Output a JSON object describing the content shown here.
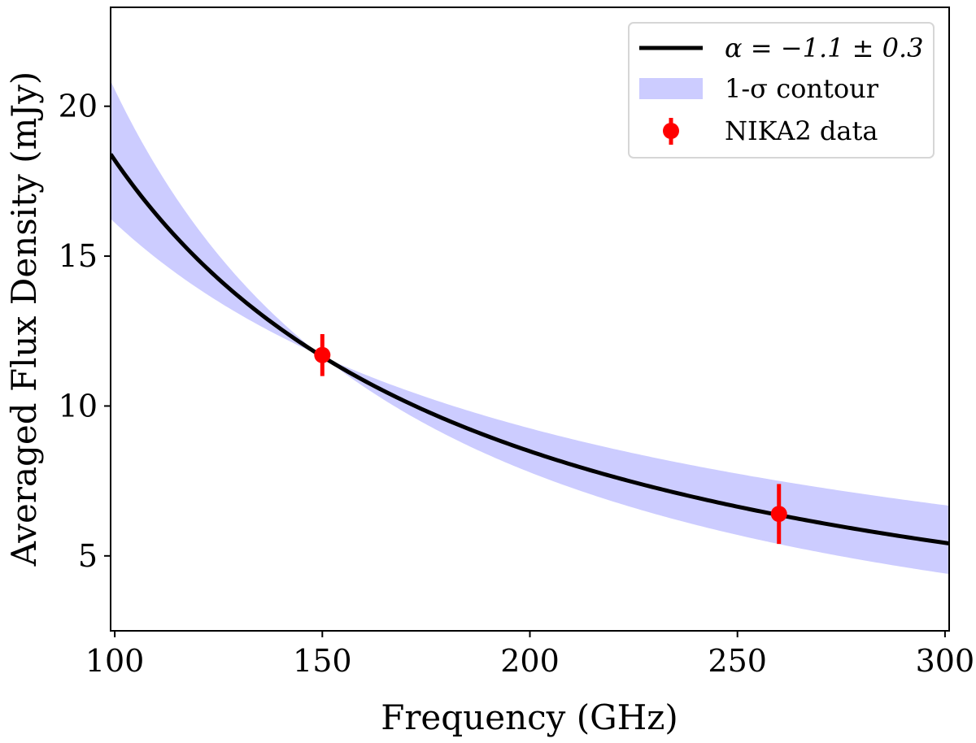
{
  "chart_data": {
    "type": "line",
    "title": "",
    "xlabel": "Frequency (GHz)",
    "ylabel": "Averaged Flux Density (mJy)",
    "xlim": [
      99,
      301
    ],
    "ylim": [
      2.5,
      23.3
    ],
    "xticks": [
      100,
      150,
      200,
      250,
      300
    ],
    "yticks": [
      5,
      10,
      15,
      20
    ],
    "grid": false,
    "legend_position": "top-right",
    "model": {
      "name": "α = −1.1 ± 0.3",
      "form": "power-law",
      "pivot_frequency": 150,
      "pivot_flux": 11.65,
      "alpha": -1.1,
      "alpha_err": 0.3,
      "color": "#000000"
    },
    "band": {
      "name": "1-σ contour",
      "color": "#ccccff"
    },
    "series": [
      {
        "name": "NIKA2 data",
        "type": "errorbar",
        "color": "#ff0000",
        "x": [
          150,
          260
        ],
        "y": [
          11.7,
          6.4
        ],
        "yerr": [
          0.7,
          1.0
        ]
      }
    ]
  }
}
